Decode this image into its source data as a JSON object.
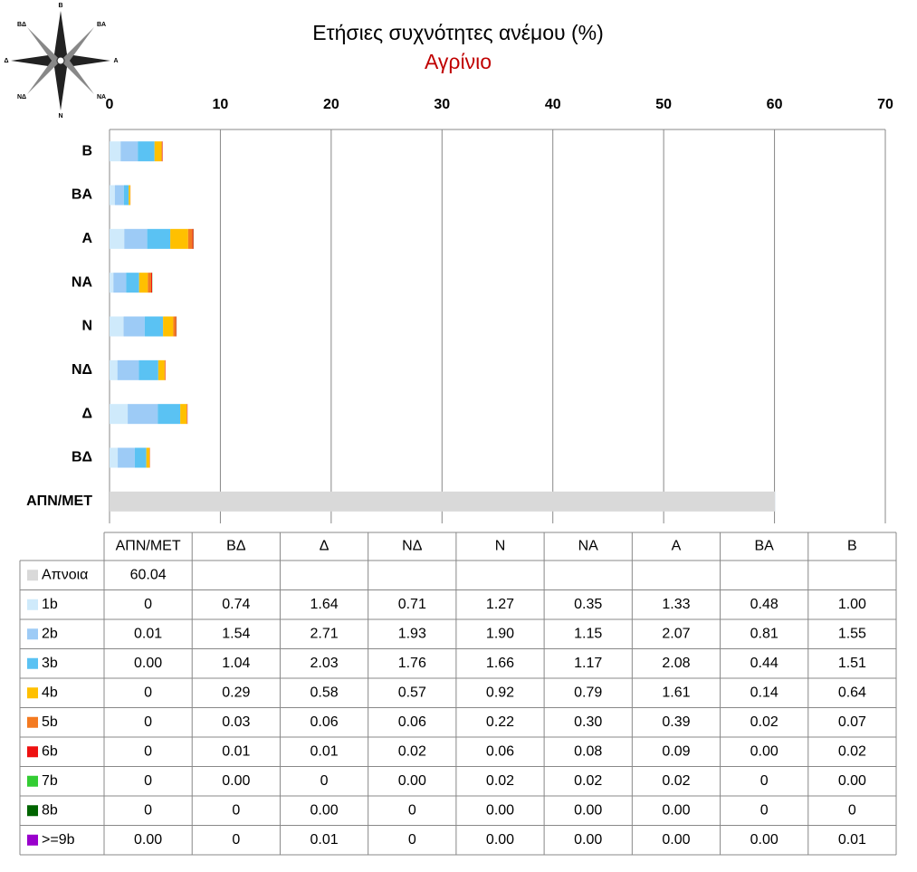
{
  "chart_data": {
    "type": "bar",
    "orientation": "horizontal",
    "stacked": true,
    "title": "Ετήσιες συχνότητες ανέμου (%)",
    "subtitle": "Αγρίνιο",
    "subtitle_color": "#c00000",
    "compass_labels": [
      "Β",
      "ΒΑ",
      "Α",
      "ΝΑ",
      "Ν",
      "ΝΔ",
      "Δ",
      "ΒΔ"
    ],
    "categories": [
      "ΑΠΝ/ΜΕΤ",
      "ΒΔ",
      "Δ",
      "ΝΔ",
      "Ν",
      "ΝΑ",
      "Α",
      "ΒΑ",
      "Β"
    ],
    "xlim": [
      0,
      70
    ],
    "xticks": [
      0,
      10,
      20,
      30,
      40,
      50,
      60,
      70
    ],
    "grid": true,
    "data_table": true,
    "series": [
      {
        "name": "Απνοια",
        "color": "#d9d9d9",
        "values": [
          60.04,
          null,
          null,
          null,
          null,
          null,
          null,
          null,
          null
        ],
        "value_labels": [
          "60.04",
          null,
          null,
          null,
          null,
          null,
          null,
          null,
          null
        ]
      },
      {
        "name": "1b",
        "color": "#cfeafb",
        "values": [
          0,
          0.74,
          1.64,
          0.71,
          1.27,
          0.35,
          1.33,
          0.48,
          1.0
        ],
        "value_labels": [
          "0",
          "0.74",
          "1.64",
          "0.71",
          "1.27",
          "0.35",
          "1.33",
          "0.48",
          "1.00"
        ]
      },
      {
        "name": "2b",
        "color": "#9dcbf6",
        "values": [
          0.01,
          1.54,
          2.71,
          1.93,
          1.9,
          1.15,
          2.07,
          0.81,
          1.55
        ],
        "value_labels": [
          "0.01",
          "1.54",
          "2.71",
          "1.93",
          "1.90",
          "1.15",
          "2.07",
          "0.81",
          "1.55"
        ]
      },
      {
        "name": "3b",
        "color": "#5ac2f3",
        "values": [
          0,
          1.04,
          2.03,
          1.76,
          1.66,
          1.17,
          2.08,
          0.44,
          1.51
        ],
        "value_labels": [
          "0.00",
          "1.04",
          "2.03",
          "1.76",
          "1.66",
          "1.17",
          "2.08",
          "0.44",
          "1.51"
        ]
      },
      {
        "name": "4b",
        "color": "#ffc000",
        "values": [
          0,
          0.29,
          0.58,
          0.57,
          0.92,
          0.79,
          1.61,
          0.14,
          0.64
        ],
        "value_labels": [
          "0",
          "0.29",
          "0.58",
          "0.57",
          "0.92",
          "0.79",
          "1.61",
          "0.14",
          "0.64"
        ]
      },
      {
        "name": "5b",
        "color": "#f47a20",
        "values": [
          0,
          0.03,
          0.06,
          0.06,
          0.22,
          0.3,
          0.39,
          0.02,
          0.07
        ],
        "value_labels": [
          "0",
          "0.03",
          "0.06",
          "0.06",
          "0.22",
          "0.30",
          "0.39",
          "0.02",
          "0.07"
        ]
      },
      {
        "name": "6b",
        "color": "#ee1111",
        "values": [
          0,
          0.01,
          0.01,
          0.02,
          0.06,
          0.08,
          0.09,
          0,
          0.02
        ],
        "value_labels": [
          "0",
          "0.01",
          "0.01",
          "0.02",
          "0.06",
          "0.08",
          "0.09",
          "0.00",
          "0.02"
        ]
      },
      {
        "name": "7b",
        "color": "#33cc33",
        "values": [
          0,
          0,
          0,
          0,
          0.02,
          0.02,
          0.02,
          0,
          0
        ],
        "value_labels": [
          "0",
          "0.00",
          "0",
          "0.00",
          "0.02",
          "0.02",
          "0.02",
          "0",
          "0.00"
        ]
      },
      {
        "name": "8b",
        "color": "#006400",
        "values": [
          0,
          0,
          0,
          0,
          0,
          0,
          0,
          0,
          0
        ],
        "value_labels": [
          "0",
          "0",
          "0.00",
          "0",
          "0.00",
          "0.00",
          "0.00",
          "0",
          "0"
        ]
      },
      {
        "name": ">=9b",
        "color": "#9900cc",
        "values": [
          0,
          0,
          0.01,
          0,
          0,
          0,
          0,
          0,
          0.01
        ],
        "value_labels": [
          "0.00",
          "0",
          "0.01",
          "0",
          "0.00",
          "0.00",
          "0.00",
          "0.00",
          "0.01"
        ]
      }
    ]
  }
}
